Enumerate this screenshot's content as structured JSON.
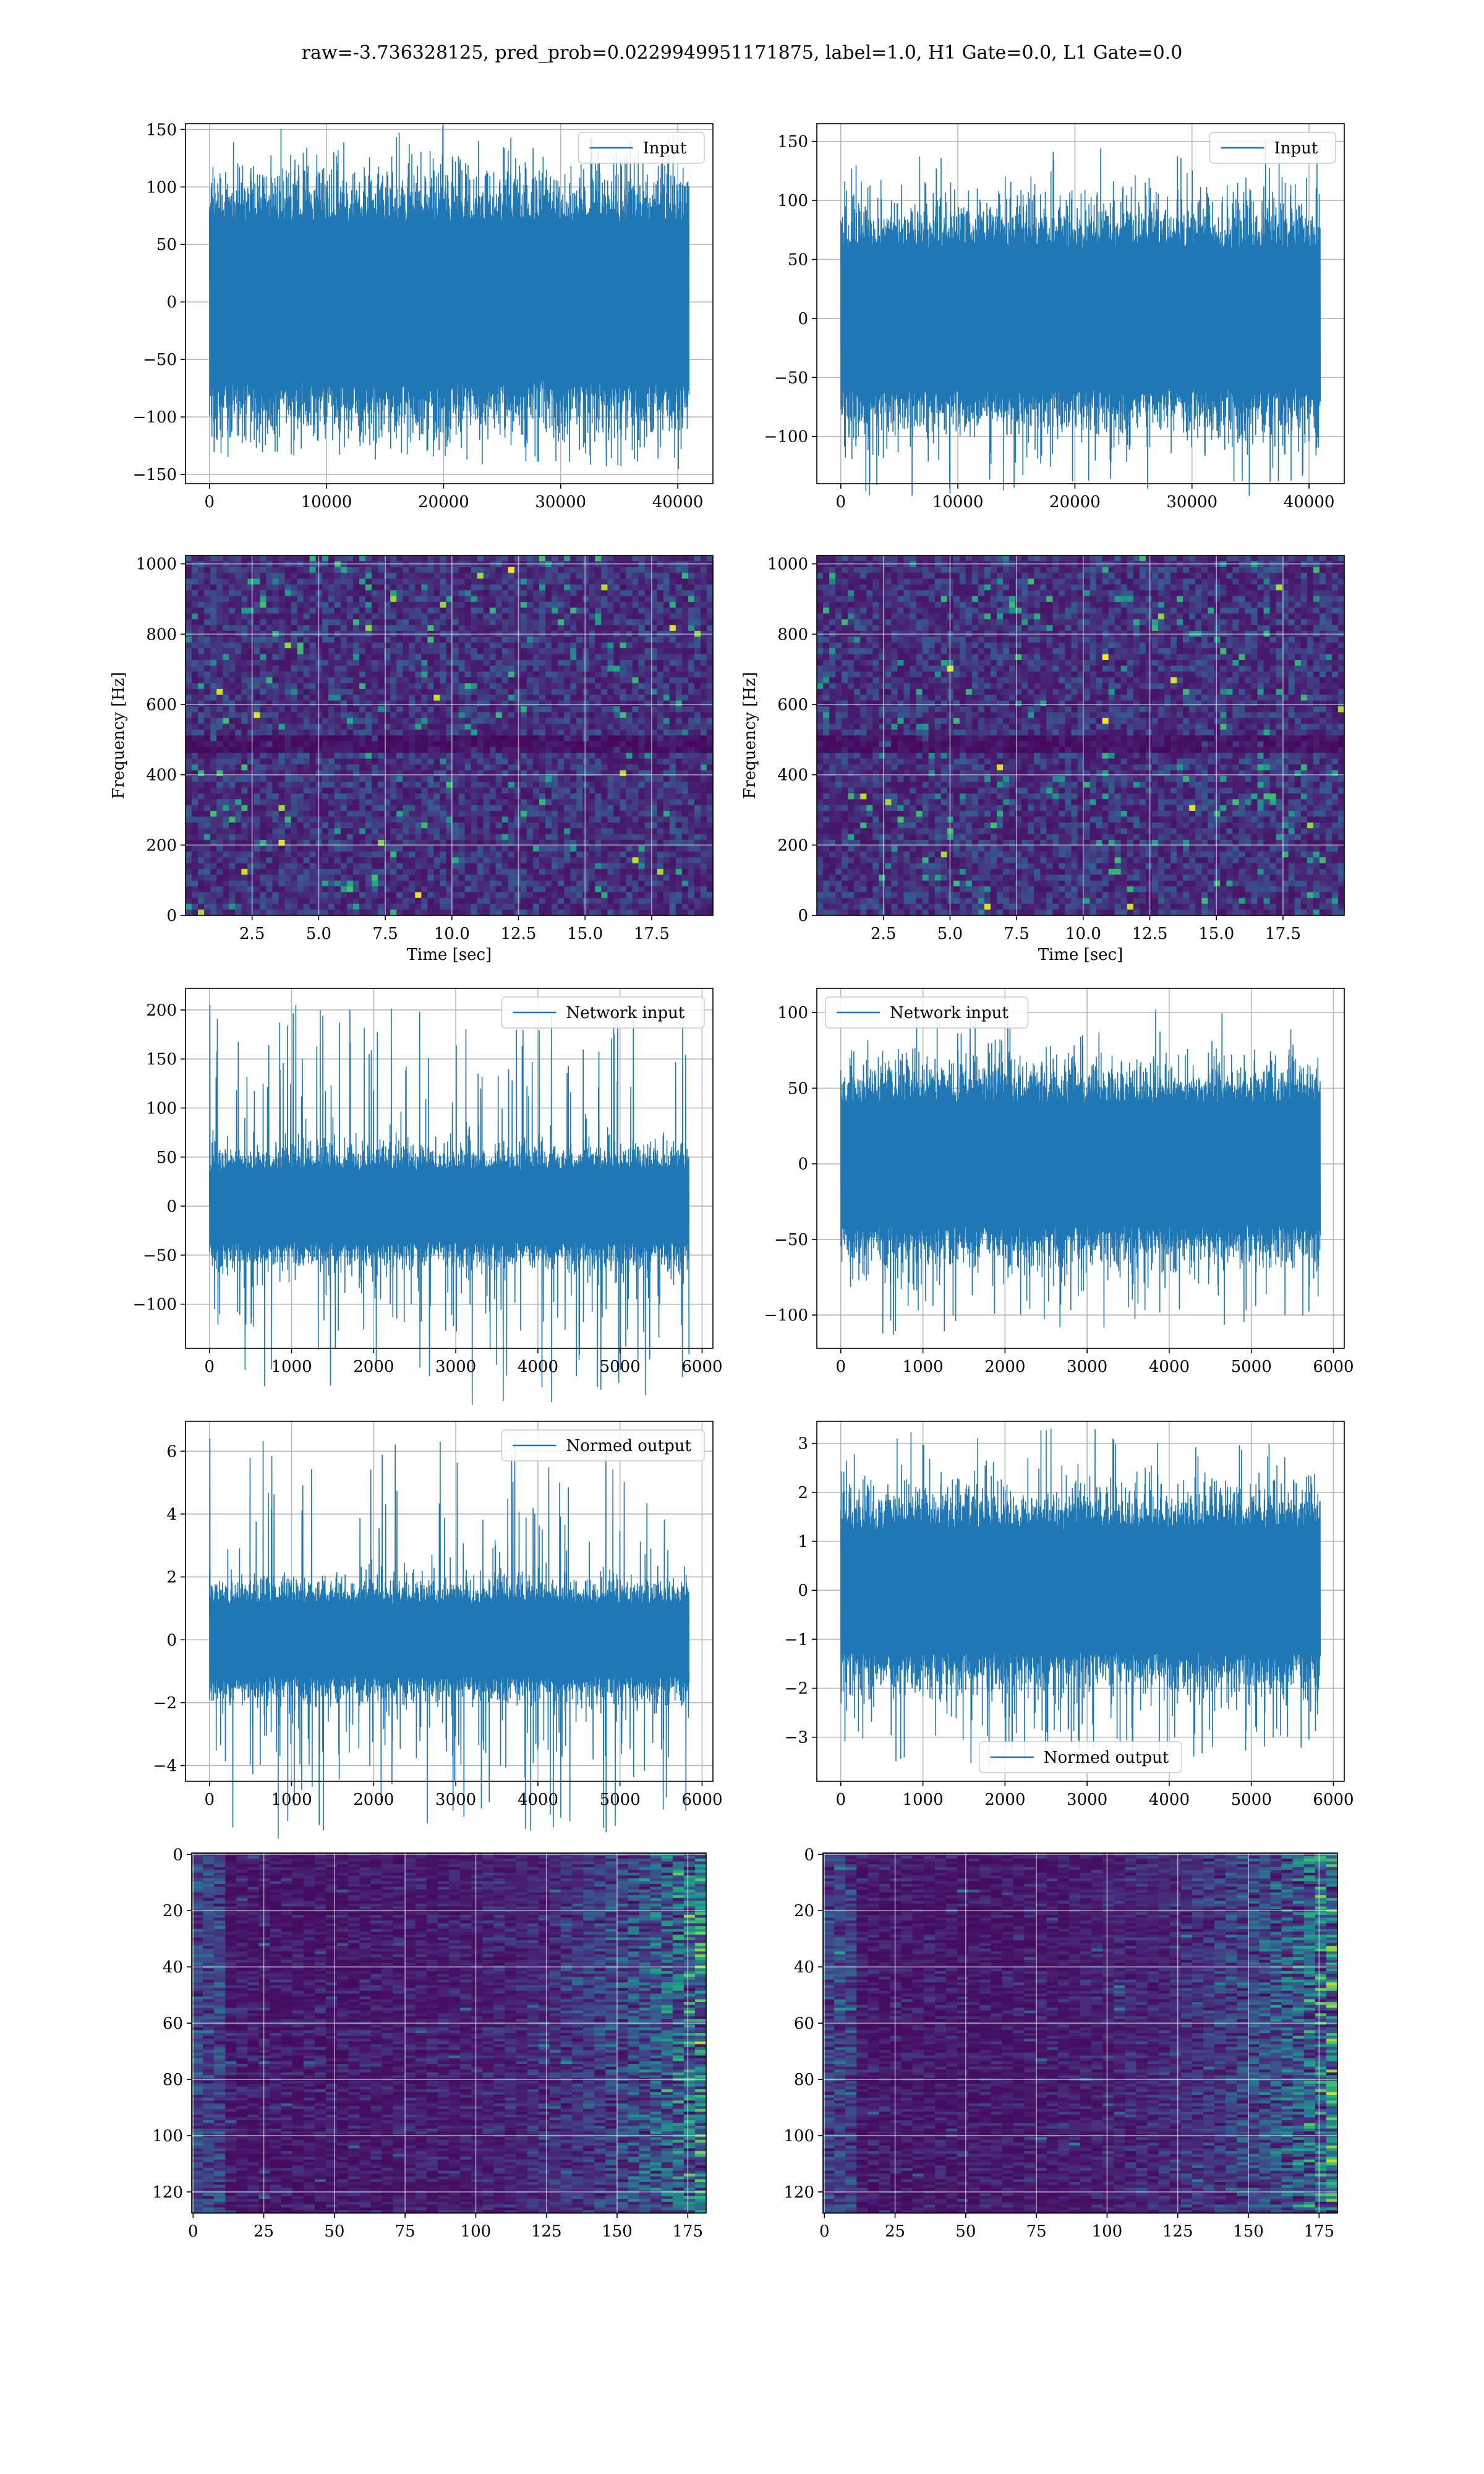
{
  "figure_title": "raw=-3.736328125, pred_prob=0.0229949951171875, label=1.0, H1 Gate=0.0, L1 Gate=0.0",
  "colors": {
    "line": "#1f77b4",
    "grid": "#b0b0b0",
    "viridis_dark": "#440154",
    "viridis_yellow": "#fde725"
  },
  "chart_data": [
    {
      "id": "r1-left",
      "type": "line",
      "title": "",
      "legend": [
        "Input"
      ],
      "legend_loc": "upper right",
      "series": [
        {
          "name": "Input",
          "x_range": [
            0,
            40960
          ],
          "y_min": -143,
          "y_max": 143,
          "core_amplitude": 72
        }
      ],
      "xlabel": "",
      "ylabel": "",
      "xlim": [
        -2048,
        43008
      ],
      "ylim": [
        -158,
        155
      ],
      "xticks": [
        0,
        10000,
        20000,
        30000,
        40000
      ],
      "yticks": [
        -150,
        -100,
        -50,
        0,
        50,
        100,
        150
      ],
      "grid": true
    },
    {
      "id": "r1-right",
      "type": "line",
      "title": "",
      "legend": [
        "Input"
      ],
      "legend_loc": "upper right",
      "series": [
        {
          "name": "Input",
          "x_range": [
            0,
            40960
          ],
          "y_min": -123,
          "y_max": 152,
          "core_amplitude": 62
        }
      ],
      "xlabel": "",
      "ylabel": "",
      "xlim": [
        -2048,
        43008
      ],
      "ylim": [
        -140,
        165
      ],
      "xticks": [
        0,
        10000,
        20000,
        30000,
        40000
      ],
      "yticks": [
        -100,
        -50,
        0,
        50,
        100,
        150
      ],
      "grid": true
    },
    {
      "id": "r2-left",
      "type": "heatmap",
      "title": "",
      "xlabel": "Time [sec]",
      "ylabel": "Frequency [Hz]",
      "xlim": [
        0,
        19.8
      ],
      "ylim": [
        0,
        1024
      ],
      "xticks": [
        2.5,
        5.0,
        7.5,
        10.0,
        12.5,
        15.0,
        17.5
      ],
      "yticks": [
        0,
        200,
        400,
        600,
        800,
        1000
      ],
      "grid": true,
      "colormap": "viridis",
      "dark_band_hz": [
        470,
        510
      ]
    },
    {
      "id": "r2-right",
      "type": "heatmap",
      "title": "",
      "xlabel": "Time [sec]",
      "ylabel": "Frequency [Hz]",
      "xlim": [
        0,
        19.8
      ],
      "ylim": [
        0,
        1024
      ],
      "xticks": [
        2.5,
        5.0,
        7.5,
        10.0,
        12.5,
        15.0,
        17.5
      ],
      "yticks": [
        0,
        200,
        400,
        600,
        800,
        1000
      ],
      "grid": true,
      "colormap": "viridis",
      "dark_band_hz": [
        470,
        510
      ]
    },
    {
      "id": "r3-left",
      "type": "line",
      "title": "",
      "legend": [
        "Network input"
      ],
      "legend_loc": "upper right",
      "series": [
        {
          "name": "Network input",
          "x_range": [
            0,
            5840
          ],
          "y_min": -128,
          "y_max": 205,
          "core_amplitude": 38,
          "initial_spike": 205
        }
      ],
      "xlabel": "",
      "ylabel": "",
      "xlim": [
        -292,
        6132
      ],
      "ylim": [
        -145,
        222
      ],
      "xticks": [
        0,
        1000,
        2000,
        3000,
        4000,
        5000,
        6000
      ],
      "yticks": [
        -100,
        -50,
        0,
        50,
        100,
        150,
        200
      ],
      "grid": true
    },
    {
      "id": "r3-right",
      "type": "line",
      "title": "",
      "legend": [
        "Network input"
      ],
      "legend_loc": "upper left",
      "series": [
        {
          "name": "Network input",
          "x_range": [
            0,
            5840
          ],
          "y_min": -113,
          "y_max": 105,
          "core_amplitude": 42
        }
      ],
      "xlabel": "",
      "ylabel": "",
      "xlim": [
        -292,
        6132
      ],
      "ylim": [
        -122,
        116
      ],
      "xticks": [
        0,
        1000,
        2000,
        3000,
        4000,
        5000,
        6000
      ],
      "yticks": [
        -100,
        -50,
        0,
        50,
        100
      ],
      "grid": true
    },
    {
      "id": "r4-left",
      "type": "line",
      "title": "",
      "legend": [
        "Normed output"
      ],
      "legend_loc": "upper right",
      "series": [
        {
          "name": "Normed output",
          "x_range": [
            0,
            5840
          ],
          "y_min": -4.0,
          "y_max": 6.4,
          "core_amplitude": 1.2,
          "initial_spike": 6.4
        }
      ],
      "xlabel": "",
      "ylabel": "",
      "xlim": [
        -292,
        6132
      ],
      "ylim": [
        -4.5,
        6.95
      ],
      "xticks": [
        0,
        1000,
        2000,
        3000,
        4000,
        5000,
        6000
      ],
      "yticks": [
        -4,
        -2,
        0,
        2,
        4,
        6
      ],
      "grid": true
    },
    {
      "id": "r4-right",
      "type": "line",
      "title": "",
      "legend": [
        "Normed output"
      ],
      "legend_loc": "lower center",
      "series": [
        {
          "name": "Normed output",
          "x_range": [
            0,
            5840
          ],
          "y_min": -3.6,
          "y_max": 3.3,
          "core_amplitude": 1.3
        }
      ],
      "xlabel": "",
      "ylabel": "",
      "xlim": [
        -292,
        6132
      ],
      "ylim": [
        -3.9,
        3.45
      ],
      "xticks": [
        0,
        1000,
        2000,
        3000,
        4000,
        5000,
        6000
      ],
      "yticks": [
        -3,
        -2,
        -1,
        0,
        1,
        2,
        3
      ],
      "grid": true
    },
    {
      "id": "r5-left",
      "type": "heatmap",
      "title": "",
      "xlabel": "",
      "ylabel": "",
      "xlim": [
        -0.5,
        181.5
      ],
      "ylim": [
        127.5,
        -0.5
      ],
      "xticks": [
        0,
        25,
        50,
        75,
        100,
        125,
        150,
        175
      ],
      "yticks": [
        0,
        20,
        40,
        60,
        80,
        100,
        120
      ],
      "grid": true,
      "colormap": "viridis",
      "shape": [
        128,
        182
      ]
    },
    {
      "id": "r5-right",
      "type": "heatmap",
      "title": "",
      "xlabel": "",
      "ylabel": "",
      "xlim": [
        -0.5,
        181.5
      ],
      "ylim": [
        127.5,
        -0.5
      ],
      "xticks": [
        0,
        25,
        50,
        75,
        100,
        125,
        150,
        175
      ],
      "yticks": [
        0,
        20,
        40,
        60,
        80,
        100,
        120
      ],
      "grid": true,
      "colormap": "viridis",
      "shape": [
        128,
        182
      ]
    }
  ]
}
